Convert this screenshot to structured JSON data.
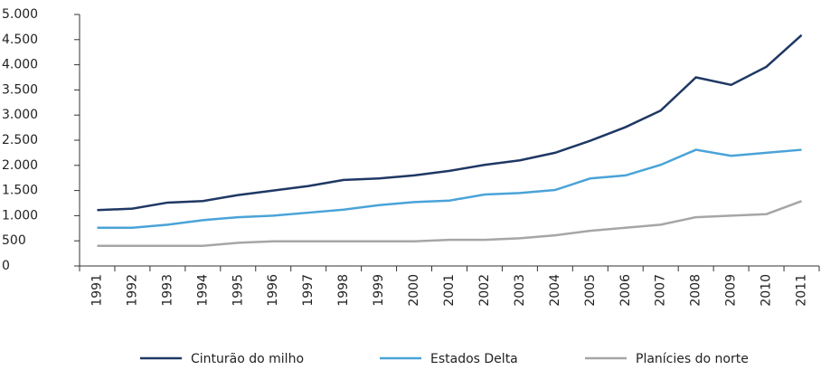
{
  "chart_data": {
    "type": "line",
    "categories": [
      "1991",
      "1992",
      "1993",
      "1994",
      "1995",
      "1996",
      "1997",
      "1998",
      "1999",
      "2000",
      "2001",
      "2002",
      "2003",
      "2004",
      "2005",
      "2006",
      "2007",
      "2008",
      "2009",
      "2010",
      "2011"
    ],
    "series": [
      {
        "name": "Cinturão do milho",
        "color": "#1f3864",
        "values": [
          1110,
          1140,
          1260,
          1290,
          1410,
          1500,
          1590,
          1710,
          1740,
          1800,
          1890,
          2010,
          2100,
          2250,
          2490,
          2760,
          3090,
          3750,
          3600,
          3960,
          4590
        ]
      },
      {
        "name": "Estados Delta",
        "color": "#4aa3d8",
        "values": [
          760,
          760,
          820,
          910,
          970,
          1000,
          1060,
          1120,
          1210,
          1270,
          1300,
          1420,
          1450,
          1510,
          1740,
          1800,
          2010,
          2310,
          2190,
          2250,
          2310
        ]
      },
      {
        "name": "Planícies do norte",
        "color": "#a6a6a6",
        "values": [
          400,
          400,
          400,
          400,
          460,
          490,
          490,
          490,
          490,
          490,
          520,
          520,
          550,
          610,
          700,
          760,
          820,
          970,
          1000,
          1030,
          1290
        ]
      }
    ],
    "ylim": [
      0,
      5000
    ],
    "yticks": [
      0,
      500,
      {
        "value": 1000,
        "label": "1.000"
      },
      {
        "value": 1500,
        "label": "1.500"
      },
      {
        "value": 2000,
        "label": "2.000"
      },
      {
        "value": 2500,
        "label": "2.500"
      },
      {
        "value": 3000,
        "label": "3.000"
      },
      {
        "value": 3500,
        "label": "3.500"
      },
      {
        "value": 4000,
        "label": "4.000"
      },
      {
        "value": 4500,
        "label": "4.500"
      },
      {
        "value": 5000,
        "label": "5.000"
      }
    ],
    "legend": "bottom"
  }
}
